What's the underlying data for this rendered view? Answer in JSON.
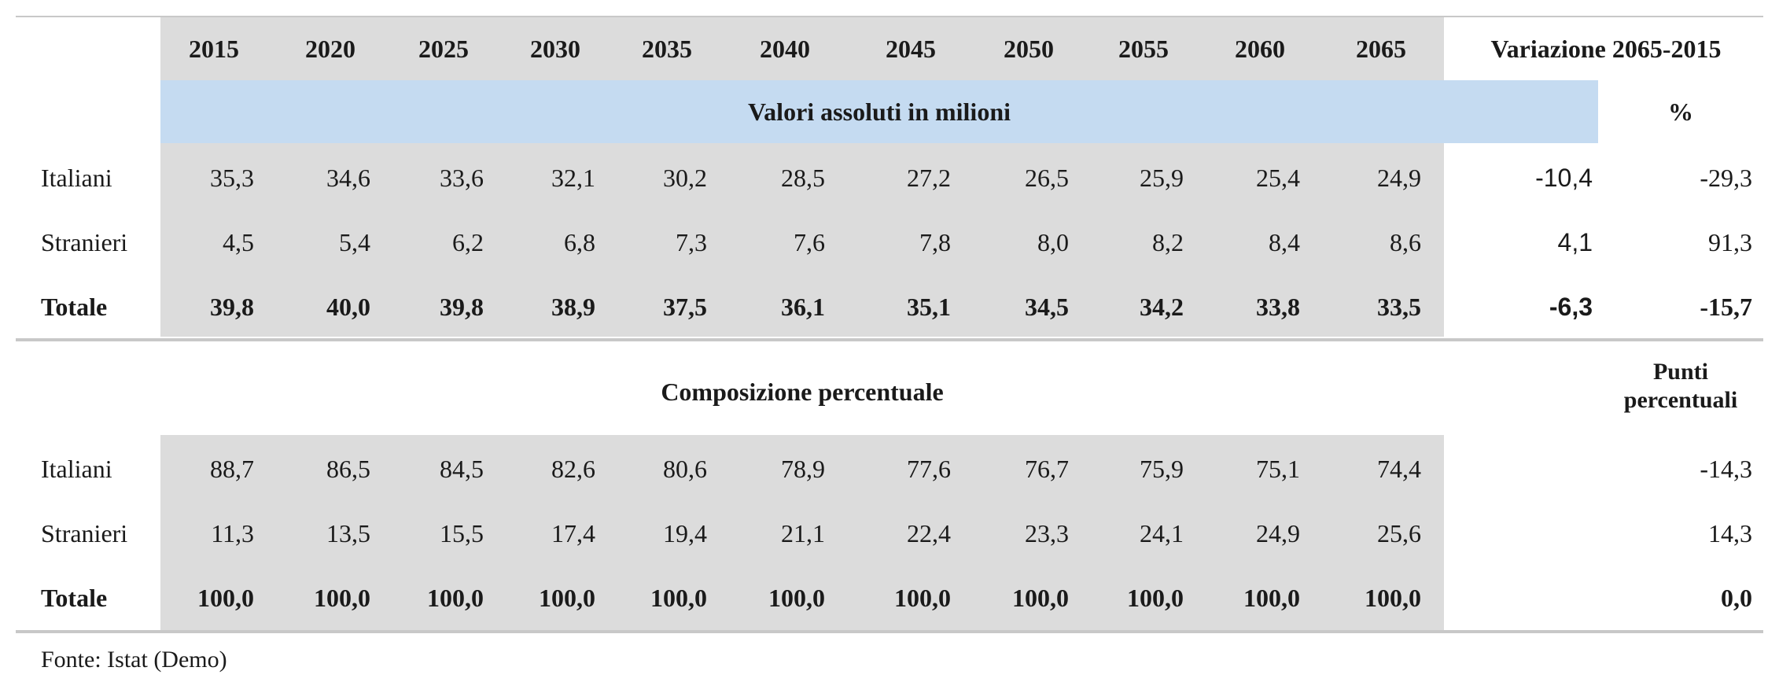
{
  "chart_data": {
    "type": "table",
    "years": [
      "2015",
      "2020",
      "2025",
      "2030",
      "2035",
      "2040",
      "2045",
      "2050",
      "2055",
      "2060",
      "2065"
    ],
    "variation_header": "Variazione 2065-2015",
    "absolute_section": {
      "title": "Valori assoluti in milioni",
      "unit_label": "%",
      "rows": [
        {
          "label": "Italiani",
          "bold": false,
          "values": [
            "35,3",
            "34,6",
            "33,6",
            "32,1",
            "30,2",
            "28,5",
            "27,2",
            "26,5",
            "25,9",
            "25,4",
            "24,9"
          ],
          "delta": "-10,4",
          "pct": "-29,3"
        },
        {
          "label": "Stranieri",
          "bold": false,
          "values": [
            "4,5",
            "5,4",
            "6,2",
            "6,8",
            "7,3",
            "7,6",
            "7,8",
            "8,0",
            "8,2",
            "8,4",
            "8,6"
          ],
          "delta": "4,1",
          "pct": "91,3"
        },
        {
          "label": "Totale",
          "bold": true,
          "values": [
            "39,8",
            "40,0",
            "39,8",
            "38,9",
            "37,5",
            "36,1",
            "35,1",
            "34,5",
            "34,2",
            "33,8",
            "33,5"
          ],
          "delta": "-6,3",
          "pct": "-15,7"
        }
      ]
    },
    "percent_section": {
      "title": "Composizione percentuale",
      "unit_label_line1": "Punti",
      "unit_label_line2": "percentuali",
      "rows": [
        {
          "label": "Italiani",
          "bold": false,
          "values": [
            "88,7",
            "86,5",
            "84,5",
            "82,6",
            "80,6",
            "78,9",
            "77,6",
            "76,7",
            "75,9",
            "75,1",
            "74,4"
          ],
          "points": "-14,3"
        },
        {
          "label": "Stranieri",
          "bold": false,
          "values": [
            "11,3",
            "13,5",
            "15,5",
            "17,4",
            "19,4",
            "21,1",
            "22,4",
            "23,3",
            "24,1",
            "24,9",
            "25,6"
          ],
          "points": "14,3"
        },
        {
          "label": "Totale",
          "bold": true,
          "values": [
            "100,0",
            "100,0",
            "100,0",
            "100,0",
            "100,0",
            "100,0",
            "100,0",
            "100,0",
            "100,0",
            "100,0",
            "100,0"
          ],
          "points": "0,0"
        }
      ]
    }
  },
  "source_note": "Fonte: Istat (Demo)",
  "colors": {
    "gray_band": "#dcdcdc",
    "blue_band": "#c5dbf1",
    "rule": "#c8c8c8"
  }
}
